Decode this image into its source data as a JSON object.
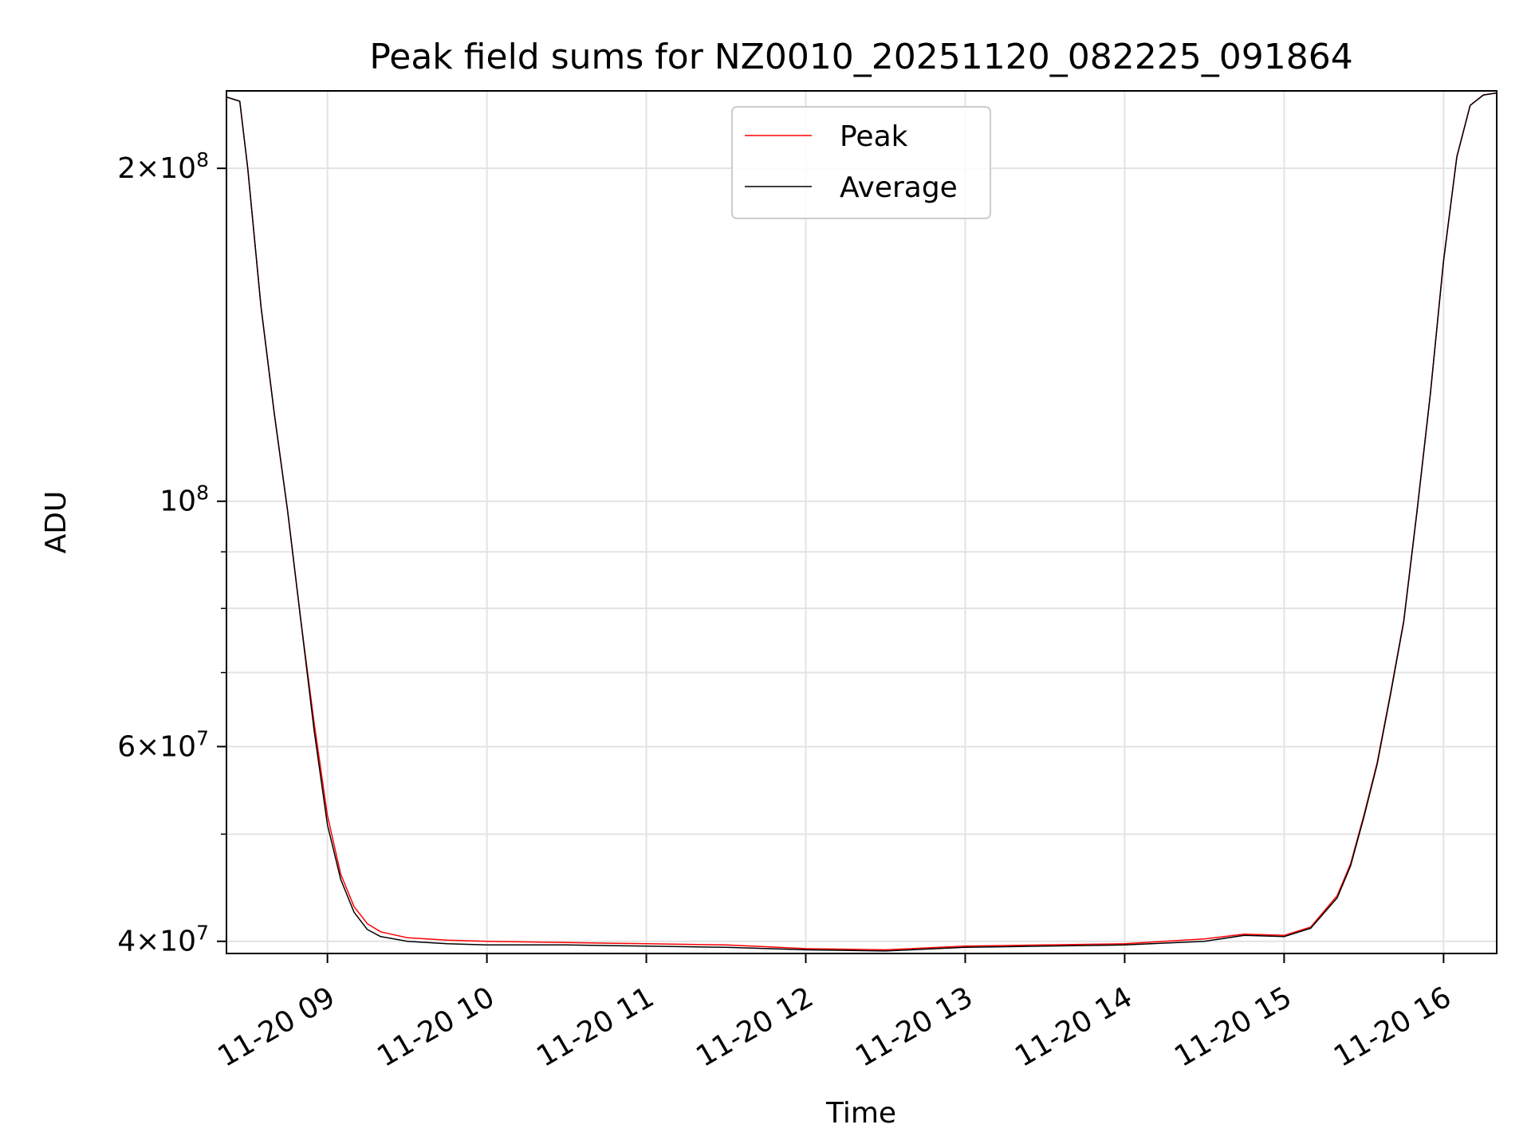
{
  "chart_data": {
    "type": "line",
    "title": "Peak field sums for NZ0010_20251120_082225_091864",
    "xlabel": "Time",
    "ylabel": "ADU",
    "x_ticks": [
      "11-20 09",
      "11-20 10",
      "11-20 11",
      "11-20 12",
      "11-20 13",
      "11-20 14",
      "11-20 15",
      "11-20 16"
    ],
    "y_scale": "log",
    "xlim": [
      "2025-11-20 08:22",
      "2025-11-20 16:20"
    ],
    "ylim": [
      39000000,
      235000000
    ],
    "y_ticks": [
      {
        "value": 40000000,
        "mantissa": "4",
        "exponent": "7"
      },
      {
        "value": 60000000,
        "mantissa": "6",
        "exponent": "7"
      },
      {
        "value": 100000000,
        "mantissa": "",
        "exponent": "8"
      },
      {
        "value": 200000000,
        "mantissa": "2",
        "exponent": "8"
      }
    ],
    "y_minor_ticks": [
      50000000,
      70000000,
      80000000,
      90000000
    ],
    "grid": true,
    "legend_placement": "top-center",
    "series": [
      {
        "name": "Peak",
        "color": "#ff0000",
        "x": [
          "2025-11-20 08:22",
          "2025-11-20 08:27",
          "2025-11-20 08:30",
          "2025-11-20 08:35",
          "2025-11-20 08:40",
          "2025-11-20 08:45",
          "2025-11-20 08:50",
          "2025-11-20 08:55",
          "2025-11-20 09:00",
          "2025-11-20 09:05",
          "2025-11-20 09:10",
          "2025-11-20 09:15",
          "2025-11-20 09:20",
          "2025-11-20 09:30",
          "2025-11-20 09:45",
          "2025-11-20 10:00",
          "2025-11-20 10:30",
          "2025-11-20 11:00",
          "2025-11-20 11:30",
          "2025-11-20 12:00",
          "2025-11-20 12:30",
          "2025-11-20 13:00",
          "2025-11-20 13:30",
          "2025-11-20 14:00",
          "2025-11-20 14:30",
          "2025-11-20 14:45",
          "2025-11-20 15:00",
          "2025-11-20 15:10",
          "2025-11-20 15:20",
          "2025-11-20 15:25",
          "2025-11-20 15:30",
          "2025-11-20 15:35",
          "2025-11-20 15:40",
          "2025-11-20 15:45",
          "2025-11-20 15:50",
          "2025-11-20 15:55",
          "2025-11-20 16:00",
          "2025-11-20 16:05",
          "2025-11-20 16:10",
          "2025-11-20 16:15",
          "2025-11-20 16:20"
        ],
        "values": [
          232000000,
          230000000,
          200000000,
          150000000,
          120000000,
          98000000,
          78000000,
          63000000,
          52000000,
          46000000,
          43000000,
          41500000,
          40800000,
          40300000,
          40100000,
          40000000,
          39900000,
          39800000,
          39700000,
          39400000,
          39300000,
          39600000,
          39700000,
          39800000,
          40200000,
          40600000,
          40500000,
          41200000,
          44000000,
          47000000,
          52000000,
          58000000,
          67000000,
          78000000,
          98000000,
          125000000,
          165000000,
          205000000,
          228000000,
          233000000,
          234000000
        ]
      },
      {
        "name": "Average",
        "color": "#000000",
        "x": [
          "2025-11-20 08:22",
          "2025-11-20 08:27",
          "2025-11-20 08:30",
          "2025-11-20 08:35",
          "2025-11-20 08:40",
          "2025-11-20 08:45",
          "2025-11-20 08:50",
          "2025-11-20 08:55",
          "2025-11-20 09:00",
          "2025-11-20 09:05",
          "2025-11-20 09:10",
          "2025-11-20 09:15",
          "2025-11-20 09:20",
          "2025-11-20 09:30",
          "2025-11-20 09:45",
          "2025-11-20 10:00",
          "2025-11-20 10:30",
          "2025-11-20 11:00",
          "2025-11-20 11:30",
          "2025-11-20 12:00",
          "2025-11-20 12:30",
          "2025-11-20 13:00",
          "2025-11-20 13:30",
          "2025-11-20 14:00",
          "2025-11-20 14:30",
          "2025-11-20 14:45",
          "2025-11-20 15:00",
          "2025-11-20 15:10",
          "2025-11-20 15:20",
          "2025-11-20 15:25",
          "2025-11-20 15:30",
          "2025-11-20 15:35",
          "2025-11-20 15:40",
          "2025-11-20 15:45",
          "2025-11-20 15:50",
          "2025-11-20 15:55",
          "2025-11-20 16:00",
          "2025-11-20 16:05",
          "2025-11-20 16:10",
          "2025-11-20 16:15",
          "2025-11-20 16:20"
        ],
        "values": [
          232000000,
          230000000,
          200000000,
          150000000,
          120000000,
          98000000,
          78000000,
          62000000,
          51000000,
          45500000,
          42500000,
          41000000,
          40400000,
          40000000,
          39800000,
          39700000,
          39700000,
          39600000,
          39500000,
          39300000,
          39200000,
          39500000,
          39600000,
          39700000,
          40000000,
          40500000,
          40400000,
          41100000,
          43800000,
          46800000,
          51800000,
          57800000,
          66800000,
          77800000,
          97800000,
          124800000,
          164800000,
          204800000,
          228000000,
          233000000,
          234000000
        ]
      }
    ]
  }
}
